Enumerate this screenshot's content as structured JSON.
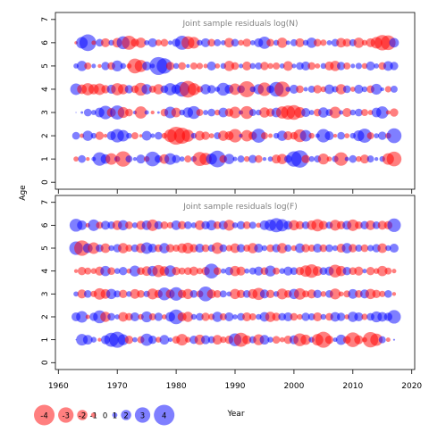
{
  "chart_data": [
    {
      "type": "scatter",
      "subtype": "bubble-residuals",
      "title": "Joint sample residuals log(N)",
      "xlim": [
        1960,
        2020
      ],
      "ylim": [
        0,
        7
      ],
      "yticks": [
        0,
        1,
        2,
        3,
        4,
        5,
        6,
        7
      ],
      "xticks": [
        1960,
        1970,
        1980,
        1990,
        2000,
        2010,
        2020
      ],
      "show_xtick_labels": false,
      "years": [
        1963,
        2017
      ],
      "ages": [
        1,
        2,
        3,
        4,
        5,
        6
      ],
      "residuals": [
        [
          -0.8,
          1.2,
          -0.6,
          0.7,
          2.1,
          1.5,
          -1.8,
          0.9,
          -2.4,
          1.1,
          0.6,
          1.4,
          -0.9,
          2.3,
          1.2,
          -1.5,
          1.8,
          1.3,
          0.8,
          -1.1,
          0.9,
          -2.2,
          -1.9,
          1.7,
          2.6,
          -1.2,
          1.6,
          0.7,
          1.1,
          -0.9,
          1.3,
          -1.2,
          0.6,
          0.8,
          -1.4,
          -1.6,
          1.2,
          2.4,
          2.7,
          -1.3,
          0.9,
          1.1,
          -1.7,
          -0.8,
          1.0,
          -2.1,
          0.7,
          1.2,
          -0.9,
          -1.4,
          1.1,
          0.6,
          0.9,
          -1.8,
          -2.3
        ],
        [
          1.2,
          -0.7,
          1.6,
          0.9,
          -1.3,
          -0.6,
          1.4,
          2.1,
          1.8,
          0.9,
          -1.1,
          -0.5,
          1.5,
          0.7,
          1.2,
          -0.9,
          -2.0,
          -2.8,
          -2.5,
          -1.9,
          0.9,
          -1.5,
          -1.3,
          -0.8,
          1.1,
          -1.6,
          -1.4,
          -2.1,
          0.6,
          -1.8,
          -1.3,
          2.2,
          -1.1,
          -0.7,
          0.9,
          1.6,
          -1.4,
          -1.2,
          -2.0,
          1.8,
          -0.9,
          0.7,
          2.1,
          1.4,
          -0.6,
          1.2,
          -0.8,
          0.9,
          1.7,
          2.2,
          -1.1,
          0.8,
          1.3,
          -0.9,
          2.3
        ],
        [
          0.1,
          0.4,
          1.2,
          0.8,
          1.5,
          2.1,
          -1.4,
          2.2,
          -1.7,
          -1.2,
          0.6,
          -1.9,
          0.7,
          -0.6,
          0.4,
          -1.2,
          1.8,
          -1.5,
          0.9,
          1.6,
          2.0,
          -1.1,
          0.8,
          1.2,
          -0.9,
          1.5,
          -1.3,
          -1.8,
          0.7,
          -2.0,
          1.1,
          0.9,
          -1.6,
          -1.3,
          1.5,
          -1.9,
          -2.2,
          -2.3,
          -1.7,
          1.4,
          0.8,
          -1.2,
          1.6,
          1.1,
          -1.8,
          0.7,
          -1.4,
          0.9,
          1.2,
          -1.1,
          -0.8,
          1.5,
          1.9,
          -0.7,
          -1.3
        ],
        [
          1.8,
          -1.5,
          -1.9,
          -1.6,
          -1.8,
          -1.3,
          1.4,
          -1.9,
          -1.6,
          1.3,
          -1.2,
          -2.0,
          1.6,
          -1.1,
          -1.6,
          1.2,
          1.9,
          1.5,
          2.3,
          -2.6,
          -1.9,
          -1.0,
          1.6,
          1.3,
          0.8,
          2.0,
          1.4,
          -1.8,
          1.2,
          -2.5,
          0.9,
          1.6,
          -2.1,
          1.2,
          2.3,
          -2.4,
          0.8,
          1.4,
          -1.2,
          0.7,
          1.1,
          -1.3,
          -0.9,
          1.5,
          1.0,
          -1.6,
          1.2,
          -0.8,
          1.4,
          0.9,
          -1.2,
          1.7,
          0.6,
          -1.0,
          1.1
        ],
        [
          0.8,
          1.6,
          -1.1,
          0.7,
          -0.6,
          1.3,
          -1.2,
          1.7,
          0.9,
          -0.8,
          -2.3,
          -1.9,
          1.4,
          0.7,
          2.8,
          2.4,
          -1.3,
          0.9,
          -1.2,
          0.6,
          -1.1,
          -1.0,
          -0.7,
          1.4,
          -0.8,
          0.9,
          -1.6,
          -1.2,
          0.7,
          -1.4,
          0.9,
          1.1,
          -1.3,
          -0.9,
          -1.1,
          0.8,
          -1.5,
          0.7,
          1.2,
          1.4,
          -1.2,
          -0.8,
          0.9,
          -1.4,
          -1.6,
          1.3,
          -1.1,
          0.7,
          1.0,
          -0.9,
          1.4,
          0.8,
          -1.2,
          1.5,
          1.3
        ],
        [
          -0.5,
          1.8,
          2.6,
          -0.7,
          1.2,
          -1.4,
          0.9,
          -1.5,
          2.0,
          -2.2,
          -1.3,
          -1.6,
          0.8,
          1.4,
          -1.0,
          -1.2,
          0.7,
          1.3,
          2.2,
          -2.0,
          -1.8,
          0.9,
          1.4,
          -1.2,
          1.1,
          0.8,
          -1.5,
          1.2,
          -0.9,
          -1.3,
          0.8,
          1.4,
          1.9,
          -1.2,
          0.9,
          -1.6,
          0.7,
          1.1,
          -1.4,
          0.9,
          1.6,
          -1.2,
          -1.0,
          0.8,
          1.2,
          -1.5,
          -1.3,
          1.1,
          -1.6,
          -0.9,
          -1.4,
          -1.8,
          -2.4,
          -2.3,
          1.5
        ]
      ]
    },
    {
      "type": "scatter",
      "subtype": "bubble-residuals",
      "title": "Joint sample residuals log(F)",
      "xlabel": "Year",
      "ylabel": "Age",
      "xlim": [
        1960,
        2020
      ],
      "ylim": [
        0,
        7
      ],
      "yticks": [
        0,
        1,
        2,
        3,
        4,
        5,
        6,
        7
      ],
      "xticks": [
        1960,
        1970,
        1980,
        1990,
        2000,
        2010,
        2020
      ],
      "show_xtick_labels": true,
      "years": [
        1963,
        2017
      ],
      "ages": [
        1,
        2,
        3,
        4,
        5,
        6
      ],
      "residuals": [
        [
          0.1,
          1.8,
          1.5,
          0.9,
          -0.6,
          1.4,
          2.2,
          2.5,
          1.7,
          -1.3,
          0.8,
          -1.1,
          1.9,
          1.3,
          -0.9,
          1.5,
          0.7,
          -1.2,
          -1.8,
          -0.9,
          1.3,
          -1.6,
          1.4,
          1.1,
          -1.5,
          -1.0,
          -1.3,
          2.0,
          -2.2,
          -1.4,
          1.1,
          -1.7,
          1.5,
          0.9,
          -1.2,
          -0.8,
          -1.3,
          1.4,
          -2.0,
          -1.6,
          0.9,
          -1.8,
          -2.5,
          -1.3,
          0.7,
          1.6,
          -1.2,
          -2.3,
          -1.4,
          -0.8,
          -2.4,
          -1.9,
          1.1,
          -0.7,
          0.3
        ],
        [
          1.4,
          1.8,
          -0.7,
          1.3,
          2.0,
          -1.6,
          1.2,
          0.8,
          -1.5,
          -1.2,
          1.4,
          -0.9,
          1.7,
          -1.1,
          1.3,
          -0.8,
          1.5,
          2.3,
          -1.4,
          -1.6,
          0.9,
          1.2,
          -1.3,
          -1.0,
          1.6,
          -1.1,
          1.4,
          0.8,
          1.2,
          -1.4,
          -1.1,
          0.9,
          1.5,
          -1.6,
          -1.3,
          1.2,
          1.4,
          -1.2,
          -0.9,
          1.3,
          1.1,
          -1.4,
          0.9,
          -1.2,
          1.5,
          1.3,
          -0.8,
          1.6,
          1.4,
          -1.0,
          1.2,
          1.7,
          1.5,
          1.3,
          2.1
        ],
        [
          0.8,
          -1.4,
          1.2,
          -1.0,
          -1.8,
          -1.5,
          1.6,
          1.1,
          -1.3,
          0.9,
          -1.5,
          -1.2,
          1.0,
          -1.7,
          -1.3,
          2.0,
          -1.4,
          2.1,
          -1.3,
          -1.6,
          1.2,
          -1.1,
          2.3,
          -1.4,
          -1.2,
          1.1,
          0.8,
          -1.6,
          -1.3,
          1.2,
          -1.5,
          -1.9,
          1.4,
          -1.3,
          0.9,
          -1.7,
          -1.2,
          1.6,
          -1.8,
          -1.1,
          -1.4,
          1.3,
          -0.9,
          1.2,
          -1.7,
          -0.8,
          -1.1,
          1.5,
          -1.2,
          1.4,
          -1.6,
          -1.3,
          -1.0,
          1.2,
          -0.6
        ],
        [
          -0.6,
          -1.3,
          -1.1,
          -0.9,
          -1.4,
          1.6,
          -1.2,
          0.9,
          1.3,
          -0.8,
          1.7,
          -1.2,
          -1.5,
          1.6,
          -1.9,
          -1.5,
          1.8,
          -1.3,
          -1.1,
          -1.2,
          -1.4,
          -1.0,
          -1.3,
          2.3,
          -1.2,
          0.8,
          1.3,
          -1.6,
          -1.4,
          0.8,
          1.1,
          1.4,
          -1.2,
          1.7,
          -1.1,
          0.9,
          1.4,
          1.2,
          -1.3,
          -1.8,
          -2.1,
          -1.5,
          1.2,
          1.4,
          -2.0,
          -1.6,
          1.3,
          -1.2,
          -1.4,
          0.7,
          -1.3,
          -0.9,
          -1.6,
          -1.1,
          -0.7
        ],
        [
          2.1,
          -2.4,
          1.5,
          -1.8,
          1.2,
          -1.5,
          0.9,
          1.3,
          -1.6,
          -1.1,
          1.2,
          -1.5,
          1.8,
          1.4,
          -1.2,
          1.6,
          -1.3,
          -1.1,
          -1.5,
          -1.7,
          -1.3,
          1.4,
          -1.2,
          1.1,
          -1.8,
          1.2,
          -1.0,
          -1.5,
          1.3,
          -1.1,
          -1.6,
          1.4,
          0.9,
          -1.2,
          1.3,
          -1.6,
          1.1,
          -0.9,
          1.5,
          -1.3,
          -1.1,
          1.4,
          -1.2,
          1.2,
          0.9,
          -1.4,
          1.6,
          -1.3,
          1.1,
          -1.2,
          1.0,
          1.3,
          -1.5,
          0.9,
          1.4
        ],
        [
          2.0,
          1.5,
          -0.7,
          1.8,
          -1.1,
          1.4,
          1.2,
          -1.5,
          1.6,
          -1.2,
          0.9,
          -1.4,
          1.5,
          -1.8,
          1.3,
          -1.2,
          -1.0,
          1.5,
          -1.3,
          1.2,
          0.9,
          -1.5,
          1.3,
          1.6,
          -1.2,
          1.4,
          -1.7,
          0.9,
          1.3,
          -1.2,
          1.1,
          -0.8,
          1.5,
          1.8,
          2.2,
          1.9,
          1.4,
          -1.6,
          -1.3,
          1.2,
          -1.5,
          -1.9,
          -1.4,
          1.1,
          -1.7,
          -1.3,
          1.4,
          -1.8,
          -1.2,
          1.3,
          -1.5,
          1.2,
          -1.4,
          -1.3,
          2.1
        ]
      ]
    }
  ],
  "legend": {
    "values": [
      -4,
      -3,
      -2,
      -1,
      0,
      1,
      2,
      3,
      4
    ],
    "labels": [
      "-4",
      "-3",
      "-2",
      "-1",
      "0",
      "1",
      "2",
      "3",
      "4"
    ],
    "position": "bottom-left"
  },
  "colors": {
    "negative": "#ff0000",
    "positive": "#0000ff"
  }
}
